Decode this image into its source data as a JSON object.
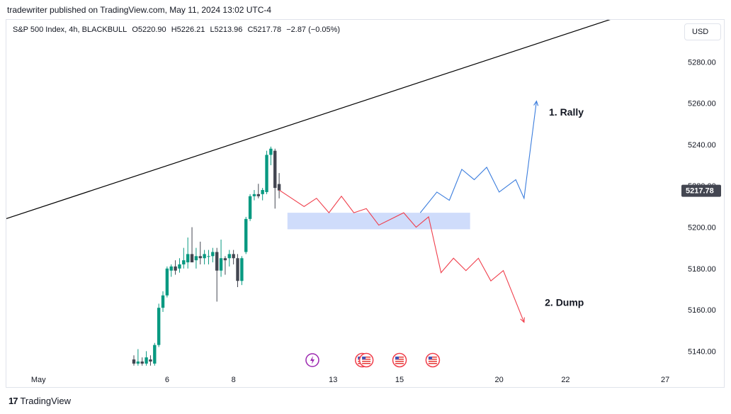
{
  "header": {
    "published_line": "tradewriter published on TradingView.com, May 11, 2024 13:02 UTC-4"
  },
  "symbol": {
    "name": "S&P 500 Index, 4h, BLACKBULL",
    "open": "O5220.90",
    "high": "H5226.21",
    "low": "L5213.96",
    "close": "C5217.78",
    "change": "−2.87 (−0.05%)"
  },
  "currency": "USD",
  "footer": {
    "brand": "TradingView",
    "logo_mark": "17"
  },
  "colors": {
    "up": "#089981",
    "down": "#434651",
    "rally_path": "#3b7ddd",
    "dump_path": "#f03e4b",
    "zone": "#cfdcfb",
    "trendline": "#000000",
    "last_price_bg": "#434651"
  },
  "chart_data": {
    "type": "candlestick",
    "y_axis": {
      "ticks": [
        5140,
        5160,
        5180,
        5200,
        5220,
        5240,
        5260,
        5280
      ],
      "tick_labels": [
        "5140.00",
        "5160.00",
        "5180.00",
        "5200.00",
        "5220.00",
        "5240.00",
        "5260.00",
        "5280.00"
      ],
      "range": [
        5133,
        5297
      ]
    },
    "x_axis": {
      "ticks": [
        {
          "label": "May",
          "i": -23
        },
        {
          "label": "6",
          "i": 8
        },
        {
          "label": "8",
          "i": 24
        },
        {
          "label": "13",
          "i": 48
        },
        {
          "label": "15",
          "i": 64
        },
        {
          "label": "20",
          "i": 88
        },
        {
          "label": "22",
          "i": 104
        },
        {
          "label": "27",
          "i": 128
        }
      ]
    },
    "candles": [
      {
        "i": 0,
        "o": 5136,
        "h": 5138,
        "l": 5133,
        "c": 5134
      },
      {
        "i": 1,
        "o": 5134,
        "h": 5141,
        "l": 5133,
        "c": 5135
      },
      {
        "i": 2,
        "o": 5135,
        "h": 5137,
        "l": 5133,
        "c": 5134
      },
      {
        "i": 3,
        "o": 5134,
        "h": 5140,
        "l": 5133,
        "c": 5137
      },
      {
        "i": 4,
        "o": 5136,
        "h": 5138,
        "l": 5133,
        "c": 5135
      },
      {
        "i": 5,
        "o": 5134,
        "h": 5144,
        "l": 5133,
        "c": 5143
      },
      {
        "i": 6,
        "o": 5143,
        "h": 5163,
        "l": 5142,
        "c": 5161
      },
      {
        "i": 7,
        "o": 5161,
        "h": 5169,
        "l": 5159,
        "c": 5167
      },
      {
        "i": 8,
        "o": 5167,
        "h": 5181,
        "l": 5166,
        "c": 5180
      },
      {
        "i": 9,
        "o": 5179,
        "h": 5182,
        "l": 5176,
        "c": 5181
      },
      {
        "i": 10,
        "o": 5181,
        "h": 5184,
        "l": 5177,
        "c": 5179
      },
      {
        "i": 11,
        "o": 5180,
        "h": 5185,
        "l": 5178,
        "c": 5182
      },
      {
        "i": 12,
        "o": 5182,
        "h": 5190,
        "l": 5180,
        "c": 5184
      },
      {
        "i": 13,
        "o": 5183,
        "h": 5195,
        "l": 5180,
        "c": 5187
      },
      {
        "i": 14,
        "o": 5187,
        "h": 5200,
        "l": 5184,
        "c": 5183
      },
      {
        "i": 15,
        "o": 5184,
        "h": 5190,
        "l": 5180,
        "c": 5186
      },
      {
        "i": 16,
        "o": 5186,
        "h": 5193,
        "l": 5182,
        "c": 5185
      },
      {
        "i": 17,
        "o": 5185,
        "h": 5189,
        "l": 5182,
        "c": 5187
      },
      {
        "i": 18,
        "o": 5186,
        "h": 5189,
        "l": 5182,
        "c": 5186
      },
      {
        "i": 19,
        "o": 5186,
        "h": 5190,
        "l": 5183,
        "c": 5188
      },
      {
        "i": 20,
        "o": 5188,
        "h": 5190,
        "l": 5164,
        "c": 5179
      },
      {
        "i": 21,
        "o": 5179,
        "h": 5194,
        "l": 5176,
        "c": 5185
      },
      {
        "i": 22,
        "o": 5185,
        "h": 5186,
        "l": 5177,
        "c": 5184
      },
      {
        "i": 23,
        "o": 5185,
        "h": 5189,
        "l": 5181,
        "c": 5187
      },
      {
        "i": 24,
        "o": 5187,
        "h": 5189,
        "l": 5182,
        "c": 5185
      },
      {
        "i": 25,
        "o": 5185,
        "h": 5187,
        "l": 5171,
        "c": 5174
      },
      {
        "i": 26,
        "o": 5174,
        "h": 5186,
        "l": 5172,
        "c": 5185
      },
      {
        "i": 27,
        "o": 5188,
        "h": 5205,
        "l": 5187,
        "c": 5204
      },
      {
        "i": 28,
        "o": 5204,
        "h": 5216,
        "l": 5203,
        "c": 5215
      },
      {
        "i": 29,
        "o": 5215,
        "h": 5218,
        "l": 5213,
        "c": 5216
      },
      {
        "i": 30,
        "o": 5216,
        "h": 5221,
        "l": 5214,
        "c": 5215
      },
      {
        "i": 31,
        "o": 5216,
        "h": 5219,
        "l": 5213,
        "c": 5218
      },
      {
        "i": 32,
        "o": 5217,
        "h": 5237,
        "l": 5216,
        "c": 5235
      },
      {
        "i": 33,
        "o": 5235,
        "h": 5239,
        "l": 5230,
        "c": 5238
      },
      {
        "i": 34,
        "o": 5237,
        "h": 5238,
        "l": 5209,
        "c": 5219
      },
      {
        "i": 35,
        "o": 5220.9,
        "h": 5226.21,
        "l": 5213.96,
        "c": 5217.78
      }
    ],
    "last_price": {
      "value": 5217.78,
      "label": "5217.78"
    },
    "trendline": {
      "from": {
        "i": -40,
        "y": 5198
      },
      "to": {
        "i": 117,
        "y": 5302
      }
    },
    "zone": {
      "i_from": 37,
      "i_to": 81,
      "y_from": 5199,
      "y_to": 5207
    },
    "rally_path": [
      {
        "i": 69,
        "y": 5207
      },
      {
        "i": 73,
        "y": 5217
      },
      {
        "i": 76,
        "y": 5213
      },
      {
        "i": 79,
        "y": 5228
      },
      {
        "i": 82,
        "y": 5223
      },
      {
        "i": 85,
        "y": 5229
      },
      {
        "i": 88,
        "y": 5217
      },
      {
        "i": 92,
        "y": 5223
      },
      {
        "i": 94,
        "y": 5214
      },
      {
        "i": 97,
        "y": 5261
      }
    ],
    "dump_path": [
      {
        "i": 35,
        "y": 5218
      },
      {
        "i": 38,
        "y": 5214
      },
      {
        "i": 41,
        "y": 5210
      },
      {
        "i": 44,
        "y": 5214
      },
      {
        "i": 47,
        "y": 5207
      },
      {
        "i": 50,
        "y": 5215
      },
      {
        "i": 53,
        "y": 5207
      },
      {
        "i": 56,
        "y": 5209
      },
      {
        "i": 59,
        "y": 5201
      },
      {
        "i": 62,
        "y": 5204
      },
      {
        "i": 65,
        "y": 5207
      },
      {
        "i": 68,
        "y": 5200
      },
      {
        "i": 71,
        "y": 5205
      },
      {
        "i": 74,
        "y": 5178
      },
      {
        "i": 77,
        "y": 5185
      },
      {
        "i": 80,
        "y": 5179
      },
      {
        "i": 83,
        "y": 5185
      },
      {
        "i": 86,
        "y": 5174
      },
      {
        "i": 89,
        "y": 5179
      },
      {
        "i": 94,
        "y": 5154
      }
    ],
    "annotations": [
      {
        "text": "1. Rally",
        "i": 100,
        "y": 5254
      },
      {
        "text": "2. Dump",
        "i": 99,
        "y": 5162
      }
    ],
    "event_icons": [
      {
        "kind": "lightning",
        "i": 43
      },
      {
        "kind": "flag",
        "i": 55
      },
      {
        "kind": "flag",
        "i": 56
      },
      {
        "kind": "flag",
        "i": 64
      },
      {
        "kind": "flag",
        "i": 72
      }
    ]
  }
}
